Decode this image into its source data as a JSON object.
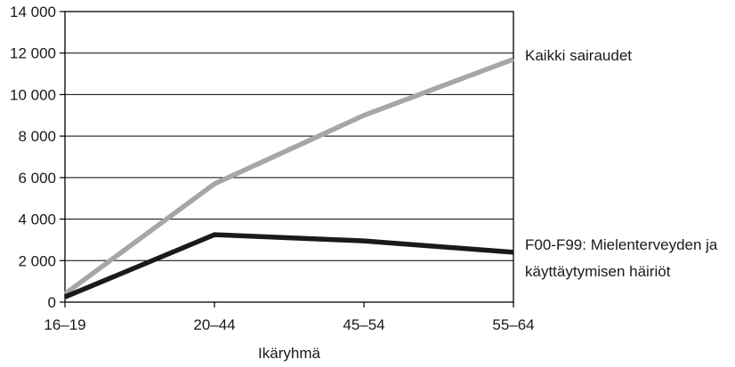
{
  "chart_data": {
    "type": "line",
    "categories": [
      "16–19",
      "20–44",
      "45–54",
      "55–64"
    ],
    "xlabel": "Ikäryhmä",
    "ylabel": "",
    "ylim": [
      0,
      14000
    ],
    "yticks": [
      0,
      2000,
      4000,
      6000,
      8000,
      10000,
      12000,
      14000
    ],
    "ytick_labels": [
      "0",
      "2 000",
      "4 000",
      "6 000",
      "8 000",
      "10 000",
      "12 000",
      "14 000"
    ],
    "grid": true,
    "series": [
      {
        "name": "Kaikki sairaudet",
        "values": [
          400,
          5700,
          9000,
          11700
        ],
        "color": "#a6a6a6"
      },
      {
        "name_lines": [
          "F00-F99: Mielenterveyden ja",
          "käyttäytymisen häiriöt"
        ],
        "values": [
          250,
          3250,
          2950,
          2400
        ],
        "color": "#1a1a1a"
      }
    ]
  }
}
